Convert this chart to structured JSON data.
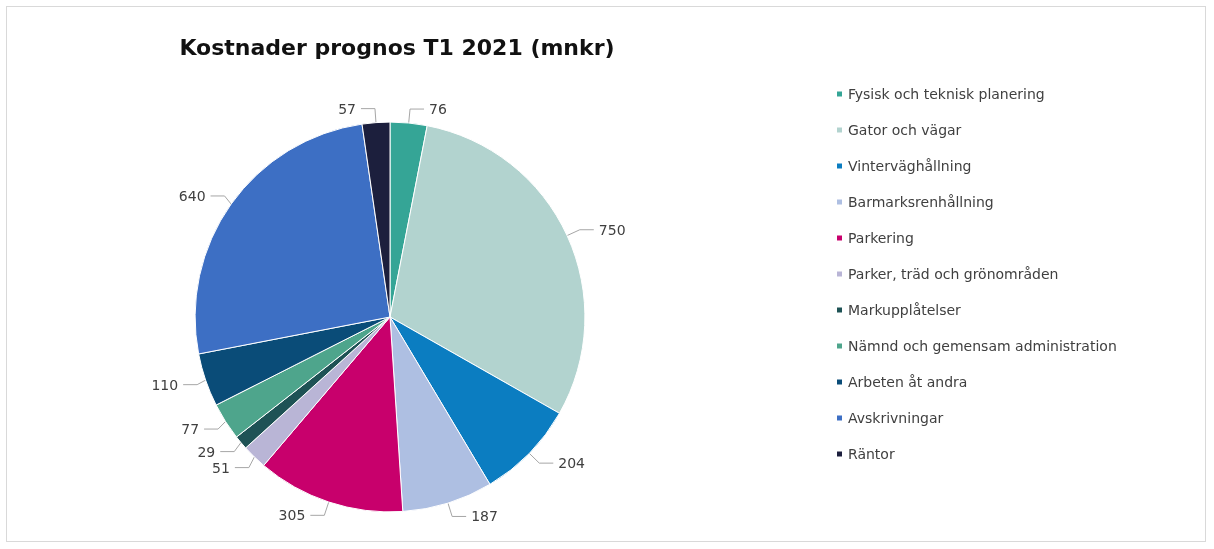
{
  "chart_data": {
    "type": "pie",
    "title": "Kostnader prognos T1 2021 (mnkr)",
    "categories": [
      "Fysisk och teknisk planering",
      "Gator och vägar",
      "Vinterväghållning",
      "Barmarksrenhållning",
      "Parkering",
      "Parker, träd och grönområden",
      "Markupplåtelser",
      "Nämnd och gemensam administration",
      "Arbeten åt andra",
      "Avskrivningar",
      "Räntor"
    ],
    "values": [
      76,
      750,
      204,
      187,
      305,
      51,
      29,
      77,
      110,
      640,
      57
    ],
    "colors": [
      "#35a596",
      "#b2d3cf",
      "#0b7dc1",
      "#aebfe2",
      "#c8006c",
      "#b9b5d6",
      "#1e5255",
      "#4ea58c",
      "#0a4c78",
      "#3d6fc4",
      "#1c1f3d"
    ],
    "data_labels": true,
    "legend": "right"
  }
}
